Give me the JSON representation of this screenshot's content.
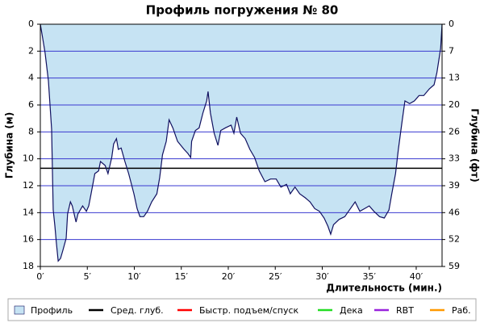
{
  "chart_data": {
    "type": "area",
    "title": "Профиль погружения № 80",
    "y_label": "Глубина (м)",
    "y2_label": "Глубина (фт)",
    "x_label": "Длительность (мин.)",
    "invert_y": true,
    "grid": true,
    "grid_color": "#3a3ad0",
    "xlim": [
      0,
      42.75
    ],
    "xticks": [
      {
        "value": 0,
        "label": "0′"
      },
      {
        "value": 5,
        "label": "5′"
      },
      {
        "value": 10,
        "label": "10′"
      },
      {
        "value": 15,
        "label": "15′"
      },
      {
        "value": 20,
        "label": "20′"
      },
      {
        "value": 25,
        "label": "25′"
      },
      {
        "value": 30,
        "label": "30′"
      },
      {
        "value": 35,
        "label": "35′"
      },
      {
        "value": 40,
        "label": "40′"
      }
    ],
    "ylim": [
      0,
      18
    ],
    "yticks": [
      0,
      2,
      4,
      6,
      8,
      10,
      12,
      14,
      16,
      18
    ],
    "y2lim": [
      0,
      59.06
    ],
    "y2ticks": [
      0,
      {
        "value": 6.56,
        "label": "7"
      },
      {
        "value": 13.12,
        "label": "13"
      },
      {
        "value": 19.69,
        "label": "20"
      },
      {
        "value": 26.25,
        "label": "26"
      },
      {
        "value": 32.81,
        "label": "33"
      },
      {
        "value": 39.37,
        "label": "39"
      },
      {
        "value": 45.93,
        "label": "46"
      },
      {
        "value": 52.49,
        "label": "52"
      },
      {
        "value": 59.06,
        "label": "59"
      }
    ],
    "series": [
      {
        "name": "Профиль",
        "color": "#c6e3f3",
        "line_color": "#101060",
        "x": [
          0,
          0.17,
          0.5,
          0.86,
          1.2,
          1.37,
          1.55,
          1.7,
          1.9,
          2.15,
          2.4,
          2.75,
          2.9,
          3.2,
          3.4,
          3.8,
          4.0,
          4.5,
          4.9,
          5.15,
          5.4,
          5.8,
          6.2,
          6.4,
          6.9,
          7.2,
          7.6,
          7.8,
          8.1,
          8.3,
          8.6,
          9.0,
          9.4,
          9.96,
          10.3,
          10.6,
          11.0,
          11.4,
          11.85,
          12.4,
          12.7,
          13.0,
          13.4,
          13.7,
          14.1,
          14.6,
          15.3,
          15.7,
          16.0,
          16.1,
          16.5,
          16.9,
          17.3,
          17.7,
          17.85,
          18.1,
          18.5,
          18.9,
          19.2,
          19.7,
          20.3,
          20.6,
          20.9,
          21.3,
          21.8,
          22.3,
          22.8,
          23.3,
          23.9,
          24.5,
          25.1,
          25.6,
          26.2,
          26.6,
          27.1,
          27.6,
          28.2,
          28.7,
          29.2,
          29.7,
          30.2,
          30.6,
          30.9,
          31.2,
          31.8,
          32.4,
          33.0,
          33.5,
          34.0,
          34.5,
          35.0,
          35.5,
          36.1,
          36.6,
          37.1,
          37.4,
          37.8,
          38.1,
          38.5,
          38.8,
          39.3,
          39.8,
          40.3,
          40.8,
          41.4,
          41.9,
          42.2,
          42.6,
          42.75
        ],
        "values": [
          0,
          0.7,
          2.1,
          4.2,
          7.8,
          13.8,
          15,
          16.2,
          17.6,
          17.4,
          16.8,
          15.9,
          14.1,
          13.2,
          13.5,
          14.7,
          14.1,
          13.5,
          13.9,
          13.5,
          12.6,
          11.1,
          10.9,
          10.2,
          10.5,
          11.1,
          9.9,
          8.9,
          8.5,
          9.3,
          9.2,
          10.2,
          11.1,
          12.6,
          13.7,
          14.3,
          14.3,
          13.9,
          13.2,
          12.6,
          11.4,
          9.7,
          8.7,
          7.1,
          7.7,
          8.7,
          9.3,
          9.6,
          9.9,
          8.7,
          7.9,
          7.7,
          6.6,
          5.7,
          5.0,
          6.6,
          8.1,
          9.0,
          7.9,
          7.7,
          7.5,
          8.1,
          6.9,
          8.1,
          8.5,
          9.3,
          9.9,
          10.9,
          11.7,
          11.5,
          11.5,
          12.1,
          11.9,
          12.6,
          12.1,
          12.6,
          12.9,
          13.2,
          13.7,
          13.9,
          14.4,
          15.0,
          15.6,
          14.9,
          14.5,
          14.3,
          13.7,
          13.2,
          13.9,
          13.7,
          13.5,
          13.9,
          14.3,
          14.4,
          13.8,
          12.6,
          11.1,
          9.3,
          7.2,
          5.7,
          5.9,
          5.7,
          5.3,
          5.3,
          4.8,
          4.5,
          3.6,
          1.8,
          0
        ]
      },
      {
        "name": "Сред. глуб.",
        "color": "#000000",
        "value": 10.7
      },
      {
        "name": "Быстр. подъем/спуск",
        "color": "#ff0000"
      },
      {
        "name": "Дека",
        "color": "#22dd22"
      },
      {
        "name": "RBT",
        "color": "#9922dd"
      },
      {
        "name": "Раб.",
        "color": "#ff9900"
      }
    ]
  }
}
